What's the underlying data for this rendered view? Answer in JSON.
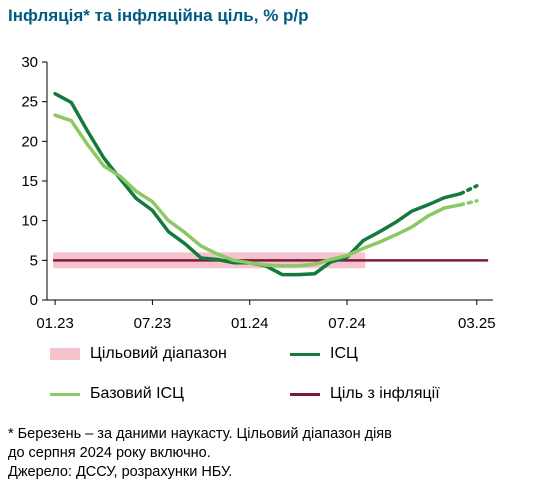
{
  "title": "Інфляція* та інфляційна ціль, % р/р",
  "chart_data": {
    "type": "line",
    "x_ticks": [
      "01.23",
      "07.23",
      "01.24",
      "07.24",
      "03.25"
    ],
    "x_tick_positions": [
      0,
      6,
      12,
      18,
      26
    ],
    "y_ticks": [
      0,
      5,
      10,
      15,
      20,
      25,
      30
    ],
    "ylim": [
      0,
      30
    ],
    "xlim": [
      -0.5,
      27
    ],
    "band": {
      "name": "Цільовий діапазон",
      "low": 4,
      "high": 6,
      "from": 0,
      "to": 19,
      "color": "#f4c3cd"
    },
    "target": {
      "name": "Ціль з інфляції",
      "value": 5,
      "from": 0,
      "to": 26.7,
      "color": "#7b1a3c"
    },
    "series": [
      {
        "name": "ІСЦ",
        "color": "#127a3c",
        "x": [
          0,
          1,
          2,
          3,
          4,
          5,
          6,
          7,
          8,
          9,
          10,
          11,
          12,
          13,
          14,
          15,
          16,
          17,
          18,
          19,
          20,
          21,
          22,
          23,
          24,
          25
        ],
        "values": [
          26.0,
          24.9,
          21.3,
          17.9,
          15.3,
          12.8,
          11.3,
          8.6,
          7.1,
          5.3,
          5.1,
          4.7,
          4.7,
          4.3,
          3.2,
          3.2,
          3.3,
          4.8,
          5.4,
          7.5,
          8.6,
          9.8,
          11.2,
          12.0,
          12.9,
          13.4
        ],
        "forecast": {
          "x": [
            25,
            26
          ],
          "values": [
            13.4,
            14.4
          ]
        }
      },
      {
        "name": "Базовий ІСЦ",
        "color": "#8cc864",
        "x": [
          0,
          1,
          2,
          3,
          4,
          5,
          6,
          7,
          8,
          9,
          10,
          11,
          12,
          13,
          14,
          15,
          16,
          17,
          18,
          19,
          20,
          21,
          22,
          23,
          24,
          25
        ],
        "values": [
          23.3,
          22.6,
          19.6,
          16.9,
          15.6,
          13.7,
          12.4,
          10.0,
          8.5,
          6.8,
          5.8,
          5.0,
          4.7,
          4.4,
          4.3,
          4.3,
          4.5,
          5.1,
          5.6,
          6.5,
          7.3,
          8.2,
          9.2,
          10.6,
          11.6,
          12.0
        ],
        "forecast": {
          "x": [
            25,
            26
          ],
          "values": [
            12.0,
            12.5
          ]
        }
      }
    ]
  },
  "legend": {
    "band": "Цільовий діапазон",
    "cpi": "ІСЦ",
    "core": "Базовий ІСЦ",
    "target": "Ціль з інфляції"
  },
  "notes": {
    "line1": "* Березень – за даними наукасту. Цільовий діапазон діяв",
    "line2": "до серпня 2024 року включно.",
    "line3": "Джерело: ДССУ, розрахунки НБУ."
  }
}
